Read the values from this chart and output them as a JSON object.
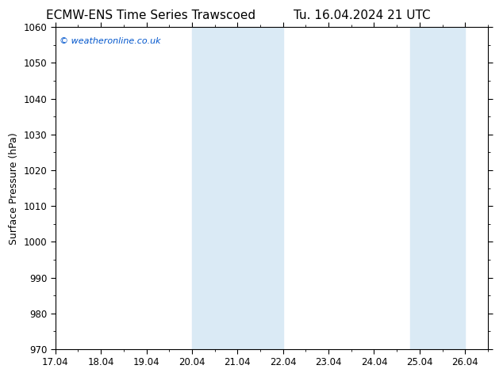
{
  "title_left": "ECMW-ENS Time Series Trawscoed",
  "title_right": "Tu. 16.04.2024 21 UTC",
  "ylabel": "Surface Pressure (hPa)",
  "ylim": [
    970,
    1060
  ],
  "yticks": [
    970,
    980,
    990,
    1000,
    1010,
    1020,
    1030,
    1040,
    1050,
    1060
  ],
  "xlim": [
    0,
    9.5
  ],
  "xtick_labels": [
    "17.04",
    "18.04",
    "19.04",
    "20.04",
    "21.04",
    "22.04",
    "23.04",
    "24.04",
    "25.04",
    "26.04"
  ],
  "xtick_positions": [
    0,
    1,
    2,
    3,
    4,
    5,
    6,
    7,
    8,
    9
  ],
  "shaded_regions": [
    {
      "xmin": 3.0,
      "xmax": 4.0,
      "color": "#daeaf5"
    },
    {
      "xmin": 4.0,
      "xmax": 5.0,
      "color": "#daeaf5"
    },
    {
      "xmin": 8.0,
      "xmax": 8.5,
      "color": "#daeaf5"
    },
    {
      "xmin": 8.5,
      "xmax": 9.0,
      "color": "#daeaf5"
    }
  ],
  "watermark_text": "© weatheronline.co.uk",
  "watermark_color": "#0055cc",
  "watermark_fontsize": 8,
  "background_color": "#ffffff",
  "plot_bg_color": "#ffffff",
  "title_fontsize": 11,
  "axis_label_fontsize": 9,
  "tick_fontsize": 8.5,
  "border_color": "#000000",
  "shade_color": "#daeaf5"
}
